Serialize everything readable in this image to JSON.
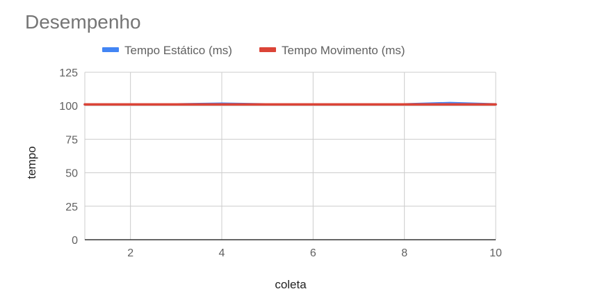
{
  "chart_data": {
    "type": "line",
    "title": "Desempenho",
    "xlabel": "coleta",
    "ylabel": "tempo",
    "x": [
      1,
      2,
      3,
      4,
      5,
      6,
      7,
      8,
      9,
      10
    ],
    "xticks": [
      2,
      4,
      6,
      8,
      10
    ],
    "xlim": [
      1,
      10
    ],
    "yticks": [
      0,
      25,
      50,
      75,
      100,
      125
    ],
    "ylim": [
      0,
      125
    ],
    "grid": true,
    "legend_position": "top",
    "series": [
      {
        "name": "Tempo Estático (ms)",
        "color": "#4285f4",
        "values": [
          101,
          101,
          101,
          101.5,
          101,
          101,
          101,
          101,
          102,
          101
        ]
      },
      {
        "name": "Tempo Movimento (ms)",
        "color": "#db4437",
        "values": [
          101,
          101,
          101,
          101,
          101,
          101,
          101,
          101,
          101,
          101
        ]
      }
    ]
  }
}
